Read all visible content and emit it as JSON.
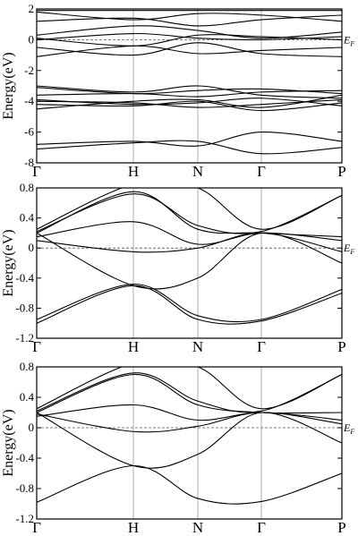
{
  "chart_data": [
    {
      "type": "line",
      "ylabel": "Energy(eV)",
      "ylim": [
        -8,
        2
      ],
      "yticks": [
        -8,
        -6,
        -4,
        -2,
        0,
        2
      ],
      "kpoints": [
        "Γ",
        "H",
        "N",
        "Γ",
        "P"
      ],
      "fermi_label": "E",
      "fermi_sub": "F",
      "fermi_level": 0,
      "series": [
        {
          "values": [
            -7.1,
            -6.7,
            -6.6,
            -7.4,
            -7.0
          ]
        },
        {
          "values": [
            -6.8,
            -6.6,
            -6.9,
            -6.0,
            -6.6
          ]
        },
        {
          "values": [
            -4.2,
            -4.3,
            -4.0,
            -4.6,
            -4.1
          ]
        },
        {
          "values": [
            -4.0,
            -4.1,
            -4.4,
            -4.2,
            -3.9
          ]
        },
        {
          "values": [
            -3.9,
            -4.2,
            -4.1,
            -3.8,
            -4.3
          ]
        },
        {
          "values": [
            -4.5,
            -4.0,
            -3.9,
            -4.4,
            -3.6
          ]
        },
        {
          "values": [
            -3.6,
            -3.5,
            -3.7,
            -3.4,
            -3.3
          ]
        },
        {
          "values": [
            -3.1,
            -3.5,
            -3.3,
            -3.2,
            -3.5
          ]
        },
        {
          "values": [
            -3.0,
            -3.4,
            -3.0,
            -3.6,
            -3.8
          ]
        },
        {
          "values": [
            -1.1,
            -0.4,
            -0.9,
            -0.7,
            -0.5
          ]
        },
        {
          "values": [
            -0.5,
            -1.0,
            -0.2,
            -0.9,
            -1.1
          ]
        },
        {
          "values": [
            0.0,
            0.4,
            0.1,
            0.0,
            0.2
          ]
        },
        {
          "values": [
            0.1,
            -0.4,
            0.3,
            0.2,
            0.0
          ]
        },
        {
          "values": [
            0.3,
            0.9,
            0.6,
            0.1,
            0.5
          ]
        },
        {
          "values": [
            1.2,
            1.4,
            0.9,
            1.3,
            1.6
          ]
        },
        {
          "values": [
            1.8,
            1.3,
            1.7,
            1.6,
            1.2
          ]
        },
        {
          "values": [
            1.9,
            1.9,
            1.9,
            1.9,
            1.9
          ]
        }
      ]
    },
    {
      "type": "line",
      "ylabel": "Energy(eV)",
      "ylim": [
        -1.2,
        0.8
      ],
      "yticks": [
        -1.2,
        -0.8,
        -0.4,
        0,
        0.4,
        0.8
      ],
      "kpoints": [
        "Γ",
        "H",
        "N",
        "Γ",
        "P"
      ],
      "fermi_label": "E",
      "fermi_sub": "F",
      "fermi_level": 0,
      "series": [
        {
          "values": [
            -1.0,
            -0.5,
            -0.95,
            -0.97,
            -0.6
          ]
        },
        {
          "values": [
            -0.95,
            -0.48,
            -0.9,
            -0.95,
            -0.55
          ]
        },
        {
          "values": [
            0.2,
            -0.5,
            -0.4,
            0.2,
            -0.2
          ]
        },
        {
          "values": [
            0.1,
            -0.05,
            0.0,
            0.2,
            -0.05
          ]
        },
        {
          "values": [
            0.15,
            0.35,
            0.05,
            0.2,
            0.1
          ]
        },
        {
          "values": [
            0.2,
            0.75,
            0.25,
            0.2,
            0.15
          ]
        },
        {
          "values": [
            0.22,
            0.72,
            0.3,
            0.22,
            0.7
          ]
        },
        {
          "values": [
            0.25,
            0.85,
            0.8,
            0.25,
            0.7
          ]
        }
      ]
    },
    {
      "type": "line",
      "ylabel": "Energy(eV)",
      "ylim": [
        -1.2,
        0.8
      ],
      "yticks": [
        -1.2,
        -0.8,
        -0.4,
        0,
        0.4,
        0.8
      ],
      "kpoints": [
        "Γ",
        "H",
        "N",
        "Γ",
        "P"
      ],
      "fermi_label": "E",
      "fermi_sub": "F",
      "fermi_level": 0,
      "series": [
        {
          "values": [
            -0.98,
            -0.5,
            -0.93,
            -0.97,
            -0.6
          ]
        },
        {
          "values": [
            0.2,
            -0.5,
            -0.35,
            0.2,
            -0.2
          ]
        },
        {
          "values": [
            0.18,
            -0.05,
            0.02,
            0.2,
            0.05
          ]
        },
        {
          "values": [
            0.15,
            0.3,
            0.1,
            0.2,
            0.1
          ]
        },
        {
          "values": [
            0.2,
            0.7,
            0.3,
            0.2,
            0.2
          ]
        },
        {
          "values": [
            0.22,
            0.72,
            0.35,
            0.22,
            0.7
          ]
        },
        {
          "values": [
            0.25,
            0.85,
            0.8,
            0.25,
            0.7
          ]
        }
      ]
    }
  ]
}
